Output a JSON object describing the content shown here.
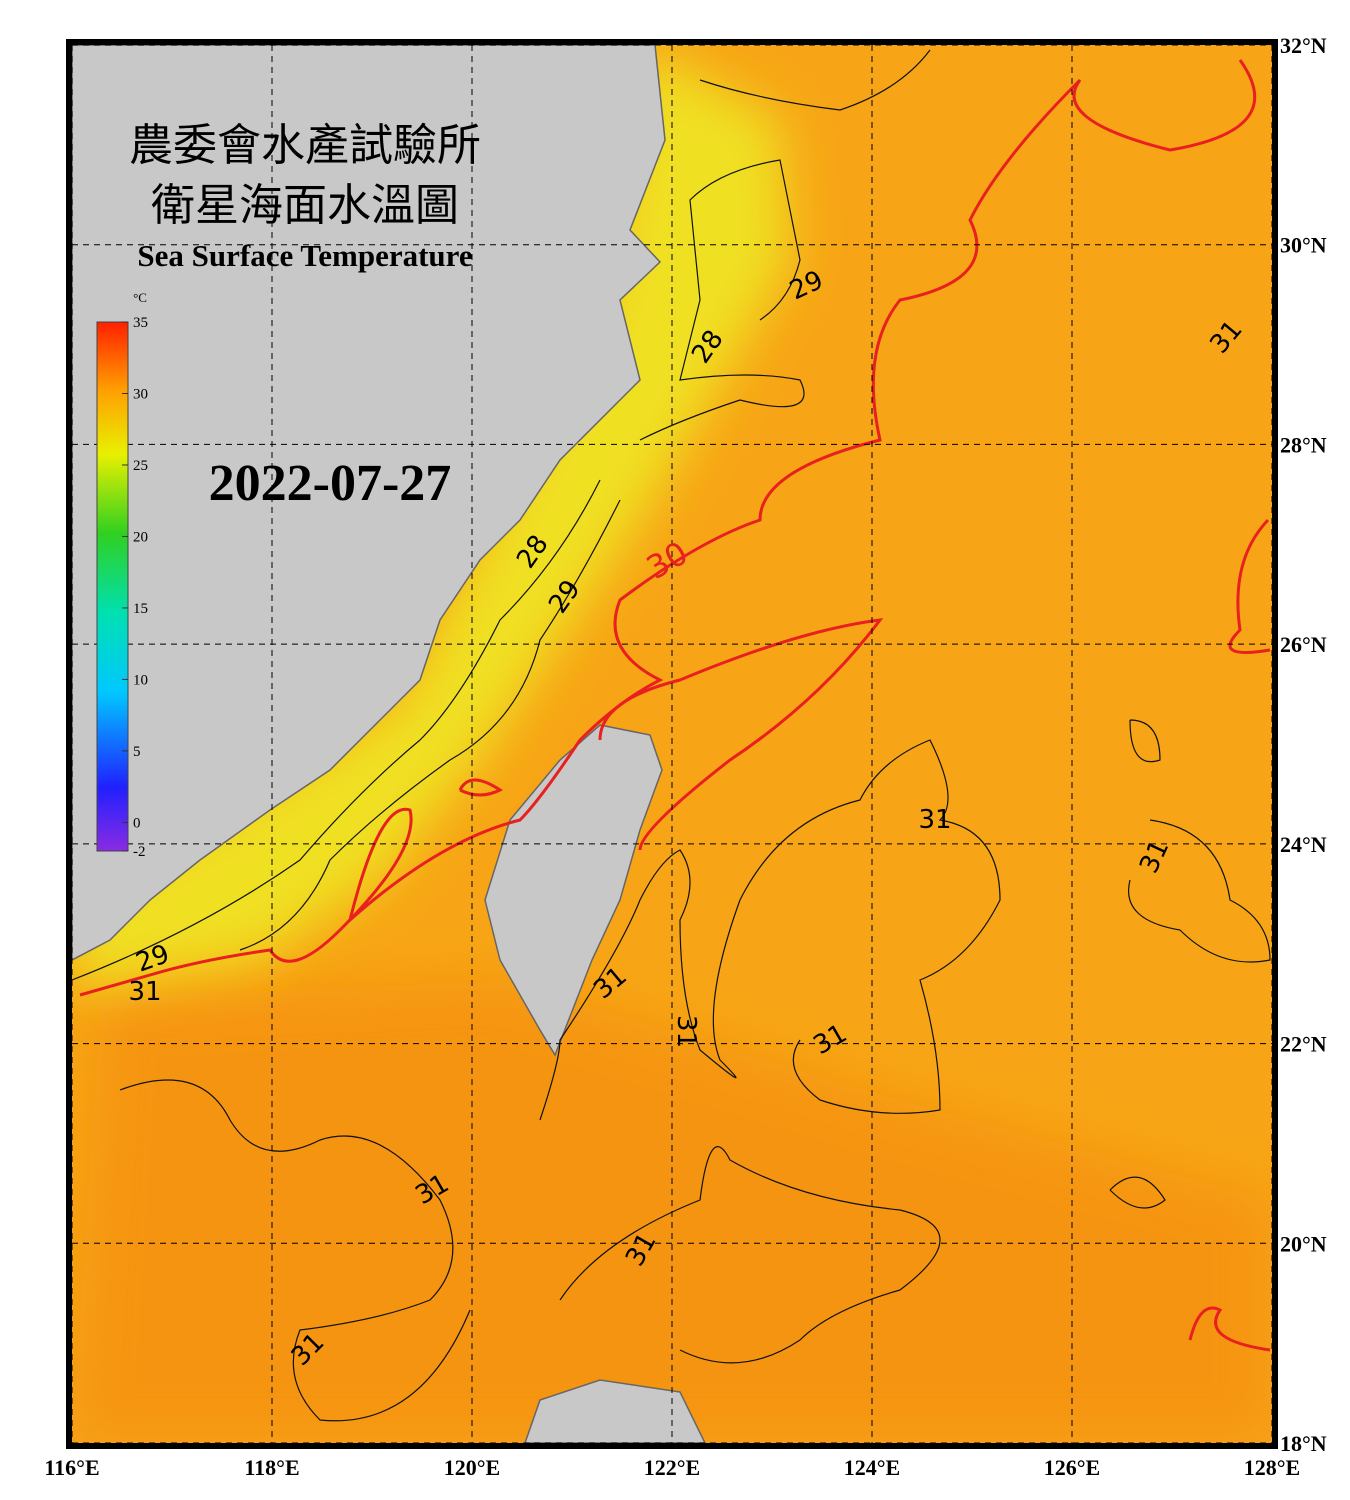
{
  "map_data": {
    "title_zh": "農委會水產試驗所",
    "subtitle_zh": "衛星海面水溫圖",
    "title_en": "Sea Surface Temperature",
    "date": "2022-07-27",
    "colorbar": {
      "unit": "°C",
      "range": [
        -2,
        35
      ],
      "ticks": [
        35,
        30,
        25,
        20,
        15,
        10,
        5,
        0,
        -2
      ]
    },
    "xlim": [
      116,
      128
    ],
    "xticks": [
      {
        "value": 116,
        "label": "116°E"
      },
      {
        "value": 118,
        "label": "118°E"
      },
      {
        "value": 120,
        "label": "120°E"
      },
      {
        "value": 122,
        "label": "122°E"
      },
      {
        "value": 124,
        "label": "124°E"
      },
      {
        "value": 126,
        "label": "126°E"
      },
      {
        "value": 128,
        "label": "128°E"
      }
    ],
    "ylim": [
      18,
      32
    ],
    "yticks": [
      {
        "value": 18,
        "label": "18°N"
      },
      {
        "value": 20,
        "label": "20°N"
      },
      {
        "value": 22,
        "label": "22°N"
      },
      {
        "value": 24,
        "label": "24°N"
      },
      {
        "value": 26,
        "label": "26°N"
      },
      {
        "value": 28,
        "label": "28°N"
      },
      {
        "value": 30,
        "label": "30°N"
      },
      {
        "value": 32,
        "label": "32°N"
      }
    ],
    "contour_labels": [
      "29",
      "28",
      "31",
      "30",
      "28",
      "29",
      "31",
      "31",
      "31",
      "31",
      "31",
      "31",
      "31",
      "31",
      "29",
      "31"
    ]
  }
}
